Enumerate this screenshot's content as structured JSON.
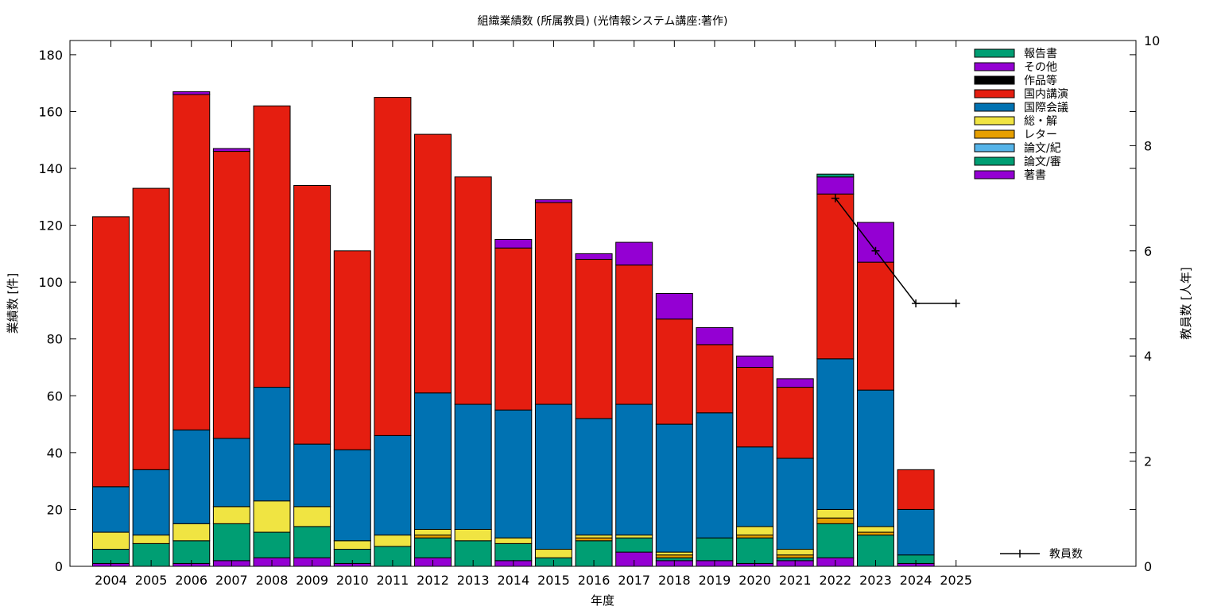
{
  "chart_data": {
    "type": "bar",
    "stacked": true,
    "title": "組織業績数 (所属教員) (光情報システム講座:著作)",
    "xlabel": "年度",
    "ylabel": "業績数 [件]",
    "y2label": "教員数 [人年]",
    "categories": [
      "2004",
      "2005",
      "2006",
      "2007",
      "2008",
      "2009",
      "2010",
      "2011",
      "2012",
      "2013",
      "2014",
      "2015",
      "2016",
      "2017",
      "2018",
      "2019",
      "2020",
      "2021",
      "2022",
      "2023",
      "2024",
      "2025"
    ],
    "ylim": [
      0,
      185
    ],
    "yticks": [
      0,
      20,
      40,
      60,
      80,
      100,
      120,
      140,
      160,
      180
    ],
    "y2lim": [
      0,
      10
    ],
    "y2ticks": [
      0,
      2,
      4,
      6,
      8,
      10
    ],
    "grid": false,
    "legend_position": "top-right",
    "series": [
      {
        "name": "著書",
        "color": "#9400d3",
        "values": [
          1,
          0,
          1,
          2,
          3,
          3,
          1,
          0,
          3,
          0,
          2,
          0,
          0,
          5,
          2,
          2,
          1,
          2,
          3,
          0,
          1,
          0
        ]
      },
      {
        "name": "論文/審",
        "color": "#009e73",
        "values": [
          5,
          8,
          8,
          13,
          9,
          11,
          5,
          7,
          7,
          9,
          6,
          3,
          9,
          5,
          1,
          8,
          9,
          1,
          12,
          11,
          3,
          0
        ]
      },
      {
        "name": "論文/紀",
        "color": "#56b4e9",
        "values": [
          0,
          0,
          0,
          0,
          0,
          0,
          0,
          0,
          0,
          0,
          0,
          0,
          0,
          0,
          0,
          0,
          0,
          0,
          0,
          0,
          0,
          0
        ]
      },
      {
        "name": "レター",
        "color": "#e69f00",
        "values": [
          0,
          0,
          0,
          0,
          0,
          0,
          0,
          0,
          1,
          0,
          0,
          0,
          1,
          0,
          1,
          0,
          1,
          1,
          2,
          1,
          0,
          0
        ]
      },
      {
        "name": "総・解",
        "color": "#f0e442",
        "values": [
          6,
          3,
          6,
          6,
          11,
          7,
          3,
          4,
          2,
          4,
          2,
          3,
          1,
          1,
          1,
          0,
          3,
          2,
          3,
          2,
          0,
          0
        ]
      },
      {
        "name": "国際会議",
        "color": "#0072b2",
        "values": [
          16,
          23,
          33,
          24,
          40,
          22,
          32,
          35,
          48,
          44,
          45,
          51,
          41,
          46,
          45,
          44,
          28,
          32,
          53,
          48,
          16,
          0
        ]
      },
      {
        "name": "国内講演",
        "color": "#e51e10",
        "values": [
          95,
          99,
          118,
          101,
          99,
          91,
          70,
          119,
          91,
          80,
          57,
          71,
          56,
          49,
          37,
          24,
          28,
          25,
          58,
          45,
          14,
          0
        ]
      },
      {
        "name": "作品等",
        "color": "#000000",
        "values": [
          0,
          0,
          0,
          0,
          0,
          0,
          0,
          0,
          0,
          0,
          0,
          0,
          0,
          0,
          0,
          0,
          0,
          0,
          0,
          0,
          0,
          0
        ]
      },
      {
        "name": "その他",
        "color": "#9400d3",
        "values": [
          0,
          0,
          1,
          1,
          0,
          0,
          0,
          0,
          0,
          0,
          3,
          1,
          2,
          8,
          9,
          6,
          4,
          3,
          6,
          14,
          0,
          0
        ]
      },
      {
        "name": "報告書",
        "color": "#009e73",
        "values": [
          0,
          0,
          0,
          0,
          0,
          0,
          0,
          0,
          0,
          0,
          0,
          0,
          0,
          0,
          0,
          0,
          0,
          0,
          1,
          0,
          0,
          0
        ]
      }
    ],
    "line_series": {
      "name": "教員数",
      "axis": "y2",
      "color": "#000000",
      "points": [
        {
          "x": "2022",
          "y": 7
        },
        {
          "x": "2023",
          "y": 6
        },
        {
          "x": "2024",
          "y": 5
        },
        {
          "x": "2025",
          "y": 5
        }
      ]
    }
  }
}
